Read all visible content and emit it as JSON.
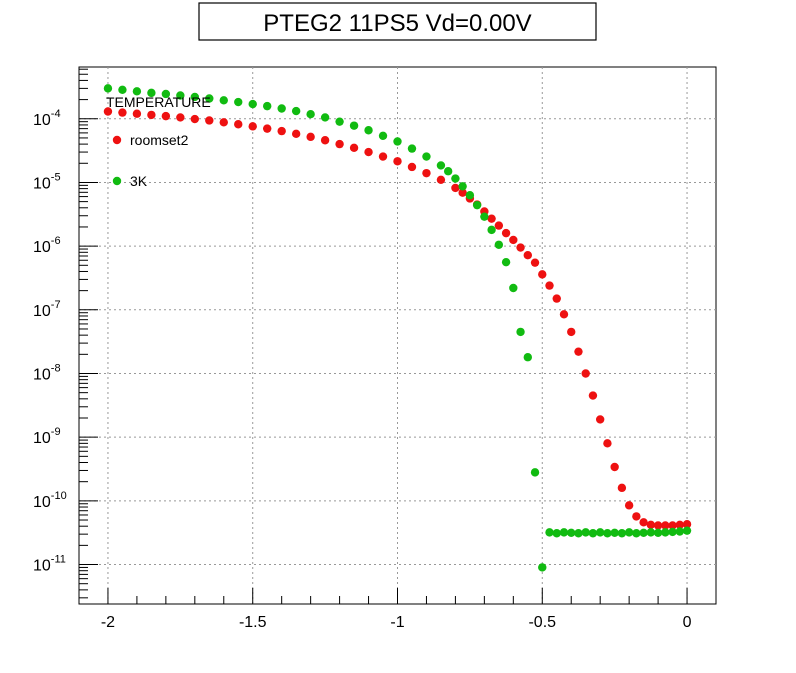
{
  "chart_data": {
    "type": "scatter",
    "title": "PTEG2 11PS5 Vd=0.00V",
    "xlabel": "",
    "ylabel": "",
    "log_y": true,
    "xlim": [
      -2.1,
      0.1
    ],
    "ylim": [
      2.4e-12,
      0.00065
    ],
    "grid": true,
    "x_ticks": [
      {
        "value": -2,
        "label": "-2"
      },
      {
        "value": -1.5,
        "label": "-1.5"
      },
      {
        "value": -1,
        "label": "-1"
      },
      {
        "value": -0.5,
        "label": "-0.5"
      },
      {
        "value": 0,
        "label": "0"
      }
    ],
    "y_ticks": [
      {
        "value": 0.0001,
        "base": "10",
        "exp": "-4"
      },
      {
        "value": 1e-05,
        "base": "10",
        "exp": "-5"
      },
      {
        "value": 1e-06,
        "base": "10",
        "exp": "-6"
      },
      {
        "value": 1e-07,
        "base": "10",
        "exp": "-7"
      },
      {
        "value": 1e-08,
        "base": "10",
        "exp": "-8"
      },
      {
        "value": 1e-09,
        "base": "10",
        "exp": "-9"
      },
      {
        "value": 1e-10,
        "base": "10",
        "exp": "-10"
      },
      {
        "value": 1e-11,
        "base": "10",
        "exp": "-11"
      }
    ],
    "legend": {
      "title": "TEMPERATURE",
      "placement": "top-left"
    },
    "series": [
      {
        "name": "roomset2",
        "color": "#ee1111",
        "points": [
          [
            -2.0,
            0.00013
          ],
          [
            -1.95,
            0.000125
          ],
          [
            -1.9,
            0.00012
          ],
          [
            -1.85,
            0.000115
          ],
          [
            -1.8,
            0.00011
          ],
          [
            -1.75,
            0.000105
          ],
          [
            -1.7,
            9.9e-05
          ],
          [
            -1.65,
            9.4e-05
          ],
          [
            -1.6,
            8.8e-05
          ],
          [
            -1.55,
            8.2e-05
          ],
          [
            -1.5,
            7.6e-05
          ],
          [
            -1.45,
            7e-05
          ],
          [
            -1.4,
            6.4e-05
          ],
          [
            -1.35,
            5.8e-05
          ],
          [
            -1.3,
            5.2e-05
          ],
          [
            -1.25,
            4.6e-05
          ],
          [
            -1.2,
            4e-05
          ],
          [
            -1.15,
            3.5e-05
          ],
          [
            -1.1,
            3e-05
          ],
          [
            -1.05,
            2.55e-05
          ],
          [
            -1.0,
            2.15e-05
          ],
          [
            -0.95,
            1.75e-05
          ],
          [
            -0.9,
            1.4e-05
          ],
          [
            -0.85,
            1.1e-05
          ],
          [
            -0.8,
            8.2e-06
          ],
          [
            -0.775,
            6.9e-06
          ],
          [
            -0.75,
            5.6e-06
          ],
          [
            -0.725,
            4.5e-06
          ],
          [
            -0.7,
            3.5e-06
          ],
          [
            -0.675,
            2.7e-06
          ],
          [
            -0.65,
            2.1e-06
          ],
          [
            -0.625,
            1.6e-06
          ],
          [
            -0.6,
            1.25e-06
          ],
          [
            -0.575,
            9.5e-07
          ],
          [
            -0.55,
            7.2e-07
          ],
          [
            -0.525,
            5.5e-07
          ],
          [
            -0.5,
            3.6e-07
          ],
          [
            -0.475,
            2.4e-07
          ],
          [
            -0.45,
            1.5e-07
          ],
          [
            -0.425,
            8.5e-08
          ],
          [
            -0.4,
            4.5e-08
          ],
          [
            -0.375,
            2.2e-08
          ],
          [
            -0.35,
            1e-08
          ],
          [
            -0.325,
            4.5e-09
          ],
          [
            -0.3,
            1.9e-09
          ],
          [
            -0.275,
            8e-10
          ],
          [
            -0.25,
            3.4e-10
          ],
          [
            -0.225,
            1.6e-10
          ],
          [
            -0.2,
            8.5e-11
          ],
          [
            -0.175,
            5.7e-11
          ],
          [
            -0.15,
            4.6e-11
          ],
          [
            -0.125,
            4.2e-11
          ],
          [
            -0.1,
            4.1e-11
          ],
          [
            -0.075,
            4.1e-11
          ],
          [
            -0.05,
            4.1e-11
          ],
          [
            -0.025,
            4.2e-11
          ],
          [
            0.0,
            4.3e-11
          ]
        ]
      },
      {
        "name": "3K",
        "color": "#11bb11",
        "points": [
          [
            -2.0,
            0.0003
          ],
          [
            -1.95,
            0.000285
          ],
          [
            -1.9,
            0.00027
          ],
          [
            -1.85,
            0.000255
          ],
          [
            -1.8,
            0.000245
          ],
          [
            -1.75,
            0.000232
          ],
          [
            -1.7,
            0.00022
          ],
          [
            -1.65,
            0.000208
          ],
          [
            -1.6,
            0.000195
          ],
          [
            -1.55,
            0.000183
          ],
          [
            -1.5,
            0.00017
          ],
          [
            -1.45,
            0.000158
          ],
          [
            -1.4,
            0.000145
          ],
          [
            -1.35,
            0.000132
          ],
          [
            -1.3,
            0.000118
          ],
          [
            -1.25,
            0.000105
          ],
          [
            -1.2,
            9e-05
          ],
          [
            -1.15,
            7.8e-05
          ],
          [
            -1.1,
            6.6e-05
          ],
          [
            -1.05,
            5.4e-05
          ],
          [
            -1.0,
            4.4e-05
          ],
          [
            -0.95,
            3.4e-05
          ],
          [
            -0.9,
            2.55e-05
          ],
          [
            -0.85,
            1.85e-05
          ],
          [
            -0.825,
            1.5e-05
          ],
          [
            -0.8,
            1.15e-05
          ],
          [
            -0.775,
            8.7e-06
          ],
          [
            -0.75,
            6.3e-06
          ],
          [
            -0.725,
            4.4e-06
          ],
          [
            -0.7,
            2.9e-06
          ],
          [
            -0.675,
            1.8e-06
          ],
          [
            -0.65,
            1.05e-06
          ],
          [
            -0.625,
            5.6e-07
          ],
          [
            -0.6,
            2.2e-07
          ],
          [
            -0.575,
            4.5e-08
          ],
          [
            -0.55,
            1.8e-08
          ],
          [
            -0.525,
            2.8e-10
          ],
          [
            -0.5,
            9e-12
          ],
          [
            -0.475,
            3.2e-11
          ],
          [
            -0.45,
            3.1e-11
          ],
          [
            -0.425,
            3.2e-11
          ],
          [
            -0.4,
            3.15e-11
          ],
          [
            -0.375,
            3.1e-11
          ],
          [
            -0.35,
            3.2e-11
          ],
          [
            -0.325,
            3.1e-11
          ],
          [
            -0.3,
            3.2e-11
          ],
          [
            -0.275,
            3.1e-11
          ],
          [
            -0.25,
            3.15e-11
          ],
          [
            -0.225,
            3.1e-11
          ],
          [
            -0.2,
            3.2e-11
          ],
          [
            -0.175,
            3.1e-11
          ],
          [
            -0.15,
            3.15e-11
          ],
          [
            -0.125,
            3.2e-11
          ],
          [
            -0.1,
            3.15e-11
          ],
          [
            -0.075,
            3.2e-11
          ],
          [
            -0.05,
            3.25e-11
          ],
          [
            -0.025,
            3.3e-11
          ],
          [
            0.0,
            3.4e-11
          ]
        ]
      }
    ]
  }
}
